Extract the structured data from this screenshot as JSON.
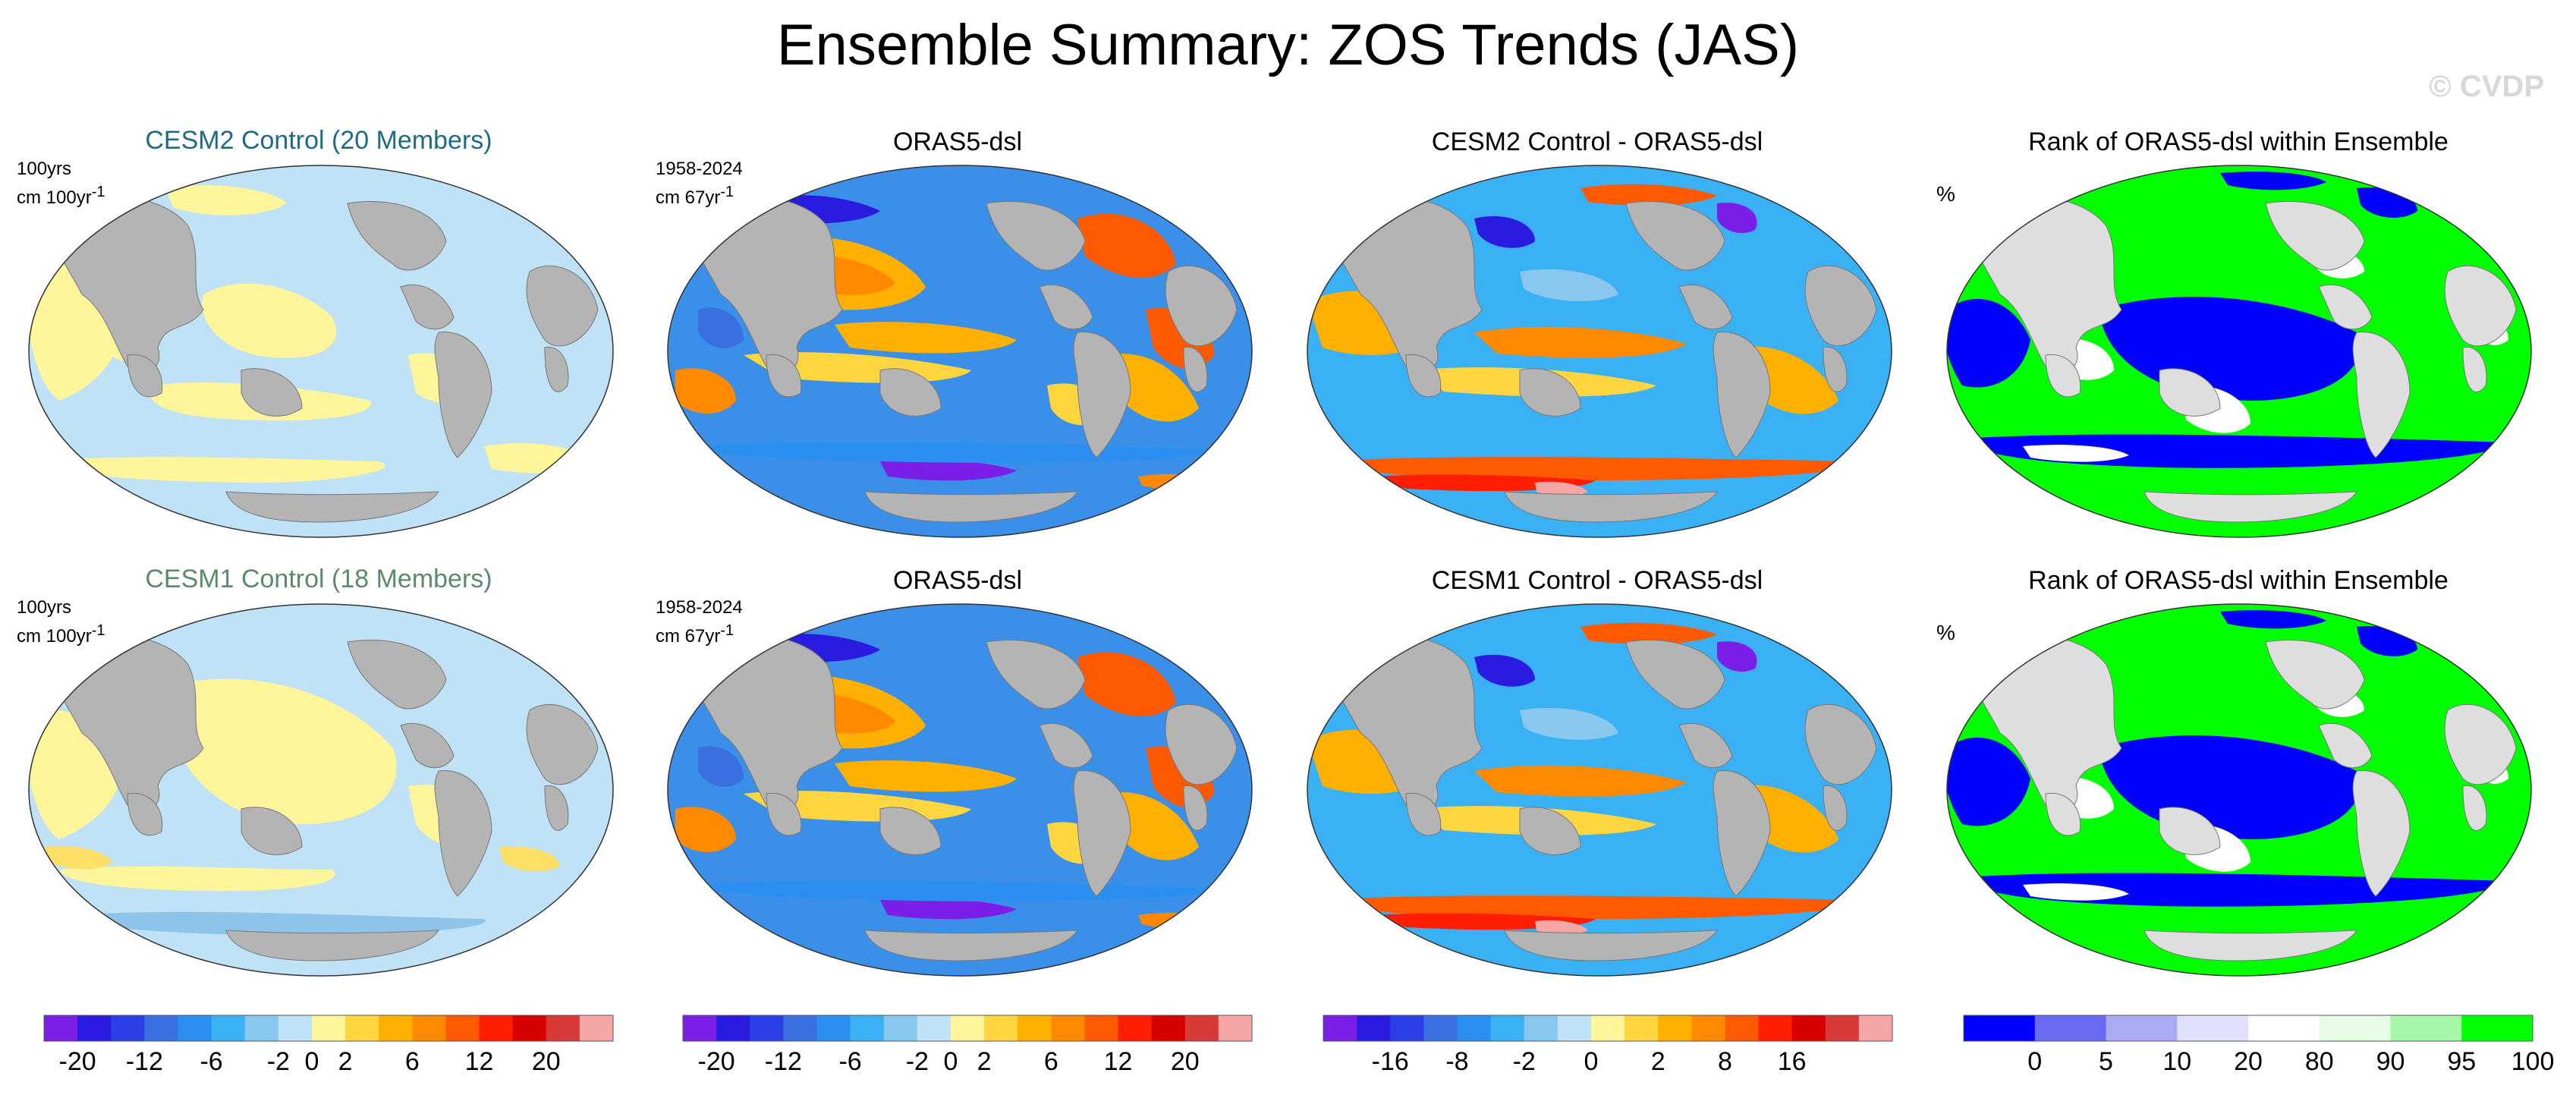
{
  "title": "Ensemble Summary: ZOS Trends (JAS)",
  "watermark": "© CVDP",
  "rows": [
    {
      "model_title": "CESM2 Control (20 Members)",
      "model_period": "100yrs",
      "model_units": "cm 100yr",
      "obs_title": "ORAS5-dsl",
      "obs_period": "1958-2024",
      "obs_units": "cm 67yr",
      "units_superscript": "-1",
      "diff_title": "CESM2 Control - ORAS5-dsl",
      "rank_title": "Rank of ORAS5-dsl within Ensemble",
      "rank_units": "%"
    },
    {
      "model_title": "CESM1 Control (18 Members)",
      "model_period": "100yrs",
      "model_units": "cm 100yr",
      "obs_title": "ORAS5-dsl",
      "obs_period": "1958-2024",
      "obs_units": "cm 67yr",
      "units_superscript": "-1",
      "diff_title": "CESM1 Control - ORAS5-dsl",
      "rank_title": "Rank of ORAS5-dsl within Ensemble",
      "rank_units": "%"
    }
  ],
  "chart_data": [
    {
      "type": "heatmap",
      "title": "CESM2 Control (20 Members)",
      "subtitle": "100yrs",
      "units": "cm 100yr-1",
      "dominant_values": [
        "-2 to 0",
        "0 to 2"
      ],
      "colorbar": "trend"
    },
    {
      "type": "heatmap",
      "title": "ORAS5-dsl",
      "subtitle": "1958-2024",
      "units": "cm 67yr-1",
      "colorbar": "trend"
    },
    {
      "type": "heatmap",
      "title": "CESM2 Control - ORAS5-dsl",
      "colorbar": "difference"
    },
    {
      "type": "heatmap",
      "title": "Rank of ORAS5-dsl within Ensemble",
      "units": "%",
      "colorbar": "rank"
    },
    {
      "type": "heatmap",
      "title": "CESM1 Control (18 Members)",
      "subtitle": "100yrs",
      "units": "cm 100yr-1",
      "dominant_values": [
        "-2 to 0",
        "0 to 2"
      ],
      "colorbar": "trend"
    },
    {
      "type": "heatmap",
      "title": "ORAS5-dsl",
      "subtitle": "1958-2024",
      "units": "cm 67yr-1",
      "colorbar": "trend"
    },
    {
      "type": "heatmap",
      "title": "CESM1 Control - ORAS5-dsl",
      "colorbar": "difference"
    },
    {
      "type": "heatmap",
      "title": "Rank of ORAS5-dsl within Ensemble",
      "units": "%",
      "colorbar": "rank"
    }
  ],
  "colorbars": {
    "trend": {
      "colors": [
        "#7a1ee8",
        "#2a1be0",
        "#2b3fe6",
        "#3a6fe0",
        "#2a8ff0",
        "#3ab0f5",
        "#88c8ee",
        "#bfe2f6",
        "#fff59a",
        "#ffd640",
        "#ffb000",
        "#ff8a00",
        "#ff5a00",
        "#ff1e00",
        "#d60000",
        "#d83a3a",
        "#f5a6a6"
      ],
      "tick_labels": [
        "-20",
        "-12",
        "-6",
        "-2",
        "0",
        "2",
        "6",
        "12",
        "20"
      ],
      "tick_boundaries": [
        1,
        3,
        5,
        7,
        8,
        9,
        11,
        13,
        15
      ]
    },
    "difference": {
      "colors": [
        "#7a1ee8",
        "#2a1be0",
        "#2b3fe6",
        "#3a6fe0",
        "#2a8ff0",
        "#3ab0f5",
        "#88c8ee",
        "#bfe2f6",
        "#fff59a",
        "#ffd640",
        "#ffb000",
        "#ff8a00",
        "#ff5a00",
        "#ff1e00",
        "#d60000",
        "#d83a3a",
        "#f5a6a6"
      ],
      "tick_labels": [
        "-16",
        "-8",
        "-2",
        "0",
        "2",
        "8",
        "16"
      ],
      "tick_boundaries": [
        2,
        4,
        6,
        8,
        10,
        12,
        14
      ]
    },
    "rank": {
      "colors": [
        "#0000ff",
        "#6a6af5",
        "#aaaaf5",
        "#e0e0fa",
        "#ffffff",
        "#e6fce6",
        "#a8f7a8",
        "#00ff00"
      ],
      "tick_labels": [
        "0",
        "5",
        "10",
        "20",
        "80",
        "90",
        "95",
        "100"
      ],
      "tick_boundaries": [
        1,
        2,
        3,
        4,
        5,
        6,
        7,
        8
      ]
    }
  }
}
